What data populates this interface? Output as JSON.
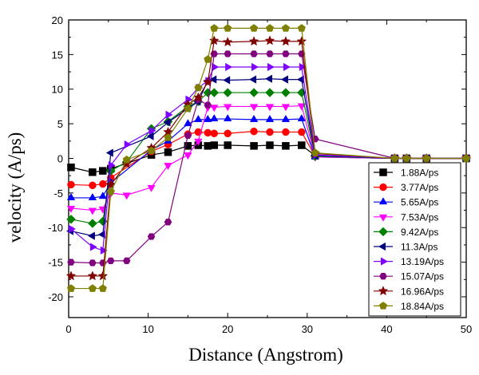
{
  "chart_data": {
    "type": "line",
    "xlabel": "Distance (Angstrom)",
    "ylabel": "velocity (A/ps)",
    "xlim": [
      0,
      50
    ],
    "ylim": [
      -23,
      20
    ],
    "xticks": [
      "0",
      "10",
      "20",
      "30",
      "40",
      "50"
    ],
    "yticks": [
      "-20",
      "-15",
      "-10",
      "-5",
      "0",
      "5",
      "10",
      "15",
      "20"
    ],
    "legend_position": "lower-right",
    "grid": false,
    "series": [
      {
        "name": "1.88A/ps",
        "color": "#000000",
        "marker": "square",
        "x": [
          0.3,
          3,
          4.3,
          5.3,
          10.4,
          12.5,
          15,
          16.3,
          17.5,
          18.3,
          20,
          23.3,
          25.3,
          27.3,
          29.3,
          31,
          41,
          42.5,
          45,
          50
        ],
        "y": [
          -1.3,
          -2.0,
          -1.8,
          -1.5,
          0.5,
          0.9,
          1.8,
          1.9,
          1.8,
          1.9,
          1.9,
          1.8,
          1.9,
          1.8,
          1.9,
          0.4,
          0,
          0,
          0,
          0
        ]
      },
      {
        "name": "3.77A/ps",
        "color": "#ff0000",
        "marker": "circle",
        "x": [
          0.3,
          3,
          4.3,
          5.3,
          10.4,
          12.5,
          15,
          16.3,
          17.5,
          18.3,
          20,
          23.3,
          25.3,
          27.3,
          29.3,
          31,
          41,
          42.5,
          45,
          50
        ],
        "y": [
          -3.8,
          -3.9,
          -3.7,
          -2.8,
          1.0,
          2.0,
          3.5,
          3.8,
          3.7,
          3.6,
          3.6,
          3.9,
          3.8,
          3.8,
          3.8,
          0.3,
          0,
          0,
          0,
          0
        ]
      },
      {
        "name": "5.65A/ps",
        "color": "#0000ff",
        "marker": "triangle-up",
        "x": [
          0.3,
          3,
          4.3,
          5.3,
          10.4,
          12.5,
          15,
          16.3,
          17.5,
          18.3,
          20,
          23.3,
          25.3,
          27.3,
          29.3,
          31,
          41,
          42.5,
          45,
          50
        ],
        "y": [
          -5.7,
          -5.7,
          -5.5,
          -3.5,
          1.2,
          2.5,
          5.0,
          5.6,
          5.6,
          5.7,
          5.7,
          5.6,
          5.6,
          5.6,
          5.7,
          0.2,
          0,
          0,
          0,
          0
        ]
      },
      {
        "name": "7.53A/ps",
        "color": "#ff00ff",
        "marker": "triangle-down",
        "x": [
          0.3,
          3,
          4.3,
          5.3,
          7.3,
          10.4,
          12.5,
          15,
          16.3,
          17.5,
          18.3,
          20,
          23.3,
          25.3,
          27.3,
          29.3,
          31,
          41,
          42.5,
          45,
          50
        ],
        "y": [
          -7.2,
          -7.5,
          -7.3,
          -5.0,
          -5.3,
          -4.2,
          -1.0,
          0.5,
          2.5,
          7.4,
          7.4,
          7.5,
          7.5,
          7.5,
          7.5,
          7.6,
          0.2,
          0,
          0,
          0,
          0
        ]
      },
      {
        "name": "9.42A/ps",
        "color": "#008000",
        "marker": "diamond",
        "x": [
          0.3,
          3,
          4.3,
          5.3,
          7.3,
          10.4,
          12.5,
          15,
          16.3,
          17.5,
          18.3,
          20,
          23.3,
          25.3,
          27.3,
          29.3,
          31,
          41,
          42.5,
          45,
          50
        ],
        "y": [
          -8.8,
          -9.4,
          -9.1,
          -1.8,
          -0.5,
          4.3,
          5.3,
          7.5,
          8.2,
          9.5,
          9.5,
          9.5,
          9.5,
          9.5,
          9.5,
          9.5,
          0.3,
          0,
          0,
          0,
          0
        ]
      },
      {
        "name": "11.3A/ps",
        "color": "#000080",
        "marker": "triangle-left",
        "x": [
          0.3,
          3,
          4.3,
          5.3,
          10.4,
          12.5,
          15,
          16.3,
          17.5,
          18.3,
          20,
          23.3,
          25.3,
          27.3,
          29.3,
          31,
          41,
          42.5,
          45,
          50
        ],
        "y": [
          -10.5,
          -11.2,
          -11.0,
          0.8,
          3.2,
          5.2,
          7.2,
          8.2,
          11.2,
          11.4,
          11.3,
          11.4,
          11.5,
          11.4,
          11.4,
          0.4,
          0,
          0,
          0,
          0
        ]
      },
      {
        "name": "13.19A/ps",
        "color": "#8000ff",
        "marker": "triangle-right",
        "x": [
          0.3,
          3,
          4.3,
          5.3,
          7.3,
          10.4,
          12.5,
          15,
          16.3,
          17.5,
          18.3,
          20,
          23.3,
          25.3,
          27.3,
          29.3,
          31,
          41,
          42.5,
          45,
          50
        ],
        "y": [
          -10.2,
          -12.8,
          -13.3,
          -1.0,
          2.0,
          4.0,
          6.3,
          8.5,
          10.2,
          11.2,
          13.2,
          13.2,
          13.2,
          13.2,
          13.2,
          13.2,
          0.5,
          0,
          0,
          0,
          0
        ]
      },
      {
        "name": "15.07A/ps",
        "color": "#800080",
        "marker": "hexagon",
        "x": [
          0.3,
          3,
          4.3,
          5.3,
          7.3,
          10.4,
          12.5,
          15,
          16.3,
          17.5,
          18.3,
          20,
          23.3,
          25.3,
          27.3,
          29.3,
          31,
          41,
          42.5,
          45,
          50
        ],
        "y": [
          -15.0,
          -15.1,
          -15.1,
          -14.8,
          -14.8,
          -11.3,
          -9.2,
          3.3,
          8.5,
          7.7,
          15.1,
          15.1,
          15.1,
          15.1,
          15.1,
          15.1,
          2.8,
          0,
          0,
          0,
          0
        ]
      },
      {
        "name": "16.96A/ps",
        "color": "#800000",
        "marker": "star",
        "x": [
          0.3,
          3,
          4.3,
          5.3,
          7.3,
          10.4,
          12.5,
          15,
          16.3,
          17.5,
          18.3,
          20,
          23.3,
          25.3,
          27.3,
          29.3,
          31,
          41,
          42.5,
          45,
          50
        ],
        "y": [
          -17.0,
          -17.0,
          -17.0,
          -3.8,
          -0.8,
          1.5,
          3.8,
          7.8,
          8.8,
          11.0,
          17.0,
          16.8,
          16.9,
          17.0,
          16.9,
          16.9,
          0.7,
          0,
          0,
          0,
          0
        ]
      },
      {
        "name": "18.84A/ps",
        "color": "#808000",
        "marker": "pentagon",
        "x": [
          0.3,
          3,
          4.3,
          5.3,
          7.3,
          10.4,
          12.5,
          15,
          16.3,
          17.5,
          18.3,
          20,
          23.3,
          25.3,
          27.3,
          29.3,
          31,
          41,
          42.5,
          45,
          50
        ],
        "y": [
          -18.8,
          -18.8,
          -18.8,
          -4.8,
          -0.2,
          1.1,
          3.0,
          7.2,
          10.2,
          14.3,
          18.8,
          18.8,
          18.8,
          18.8,
          18.8,
          18.8,
          0.8,
          0,
          0,
          0,
          0
        ]
      }
    ]
  }
}
